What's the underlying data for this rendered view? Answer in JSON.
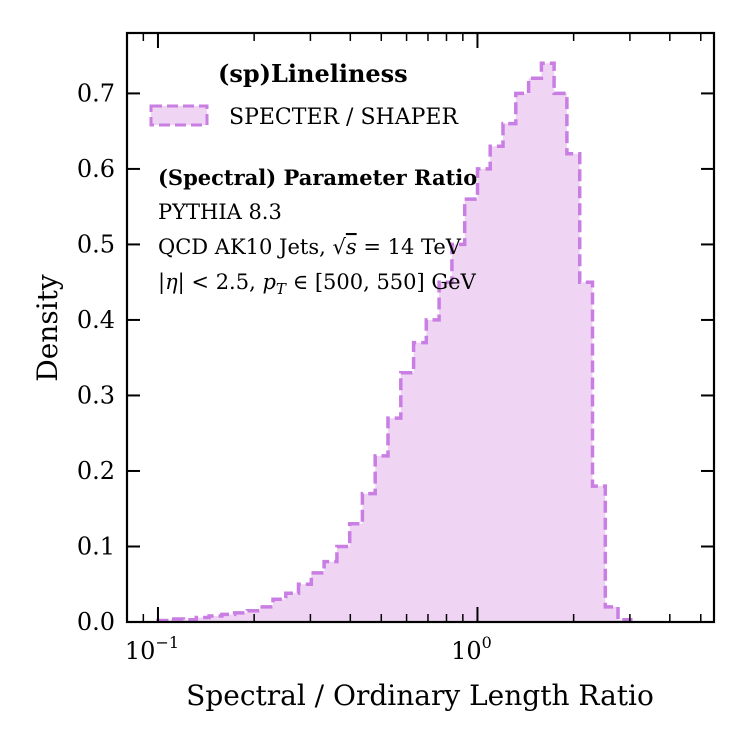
{
  "chart_data": {
    "type": "histogram",
    "title": "",
    "xlabel": "Spectral / Ordinary Length Ratio",
    "ylabel": "Density",
    "xscale": "log",
    "xlim": [
      0.08,
      5.5
    ],
    "ylim": [
      0.0,
      0.78
    ],
    "x_ticks": [
      {
        "value": 0.1,
        "label": "10",
        "exp": "−1"
      },
      {
        "value": 1.0,
        "label": "10",
        "exp": "0"
      }
    ],
    "y_ticks": [
      {
        "value": 0.0,
        "label": "0.0"
      },
      {
        "value": 0.1,
        "label": "0.1"
      },
      {
        "value": 0.2,
        "label": "0.2"
      },
      {
        "value": 0.3,
        "label": "0.3"
      },
      {
        "value": 0.4,
        "label": "0.4"
      },
      {
        "value": 0.5,
        "label": "0.5"
      },
      {
        "value": 0.6,
        "label": "0.6"
      },
      {
        "value": 0.7,
        "label": "0.7"
      }
    ],
    "legend": {
      "title": "(sp)Lineliness",
      "entry": "SPECTER / SHAPER",
      "placement": "top-left"
    },
    "annotations": {
      "heading": "(Spectral) Parameter Ratio",
      "line1": "PYTHIA 8.3",
      "line2_prefix": "QCD AK10 Jets, ",
      "line2_sqrt": "√",
      "line2_s": "s",
      "line2_suffix": " = 14 TeV",
      "line3_a": "|",
      "line3_eta": "η",
      "line3_b": "| < 2.5, ",
      "line3_p": "p",
      "line3_sub": "T",
      "line3_c": " ∈ [500, 550] GeV"
    },
    "series": [
      {
        "name": "SPECTER / SHAPER",
        "color": "#c97ee3",
        "fill": "#efd5f3",
        "bin_edges_log10": [
          -1.0,
          -0.96,
          -0.92,
          -0.88,
          -0.84,
          -0.8,
          -0.76,
          -0.72,
          -0.68,
          -0.64,
          -0.6,
          -0.56,
          -0.52,
          -0.48,
          -0.44,
          -0.4,
          -0.36,
          -0.32,
          -0.28,
          -0.24,
          -0.2,
          -0.16,
          -0.12,
          -0.08,
          -0.04,
          0.0,
          0.04,
          0.08,
          0.12,
          0.16,
          0.2,
          0.24,
          0.28,
          0.32,
          0.36,
          0.4,
          0.44,
          0.48
        ],
        "values": [
          0.002,
          0.004,
          0.003,
          0.006,
          0.008,
          0.01,
          0.012,
          0.015,
          0.02,
          0.03,
          0.038,
          0.05,
          0.065,
          0.08,
          0.1,
          0.13,
          0.17,
          0.22,
          0.27,
          0.33,
          0.37,
          0.4,
          0.45,
          0.5,
          0.56,
          0.6,
          0.63,
          0.66,
          0.7,
          0.72,
          0.74,
          0.7,
          0.62,
          0.45,
          0.18,
          0.02,
          0.003
        ]
      }
    ]
  }
}
